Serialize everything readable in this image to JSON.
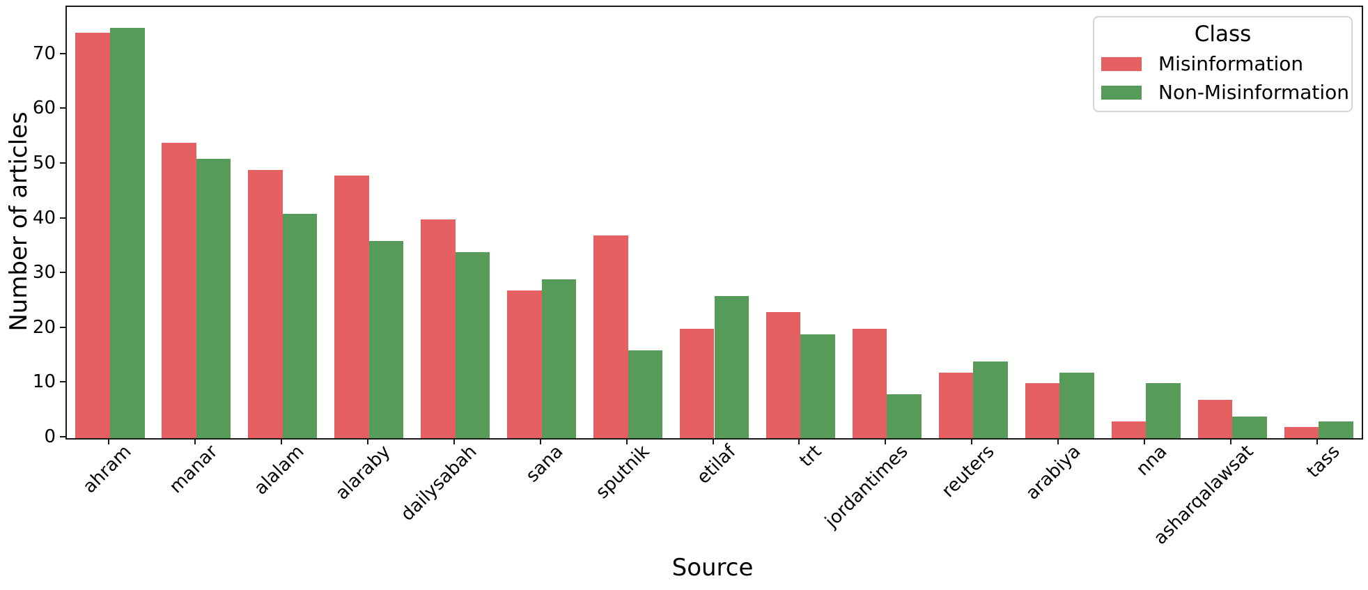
{
  "figure": {
    "background": "#ffffff",
    "spine_color": "#1a1a1a",
    "text_color": "#000000"
  },
  "chart_data": {
    "type": "bar",
    "title": "",
    "xlabel": "Source",
    "ylabel": "Number of articles",
    "categories": [
      "ahram",
      "manar",
      "alalam",
      "alaraby",
      "dailysabah",
      "sana",
      "sputnik",
      "etilaf",
      "trt",
      "jordantimes",
      "reuters",
      "arabiya",
      "nna",
      "asharqalawsat",
      "tass"
    ],
    "series": [
      {
        "name": "Misinformation",
        "color": "#e56161",
        "values": [
          74,
          54,
          49,
          48,
          40,
          27,
          37,
          20,
          23,
          20,
          12,
          10,
          3,
          7,
          2
        ]
      },
      {
        "name": "Non-Misinformation",
        "color": "#579b58",
        "values": [
          75,
          51,
          41,
          36,
          34,
          29,
          16,
          26,
          19,
          8,
          14,
          12,
          10,
          4,
          3
        ]
      }
    ],
    "ylim": [
      0,
      78.75
    ],
    "yticks": [
      0,
      10,
      20,
      30,
      40,
      50,
      60,
      70
    ],
    "xtick_rotation_deg": 45,
    "grid": false,
    "legend": {
      "title": "Class",
      "position": "upper-right"
    }
  }
}
